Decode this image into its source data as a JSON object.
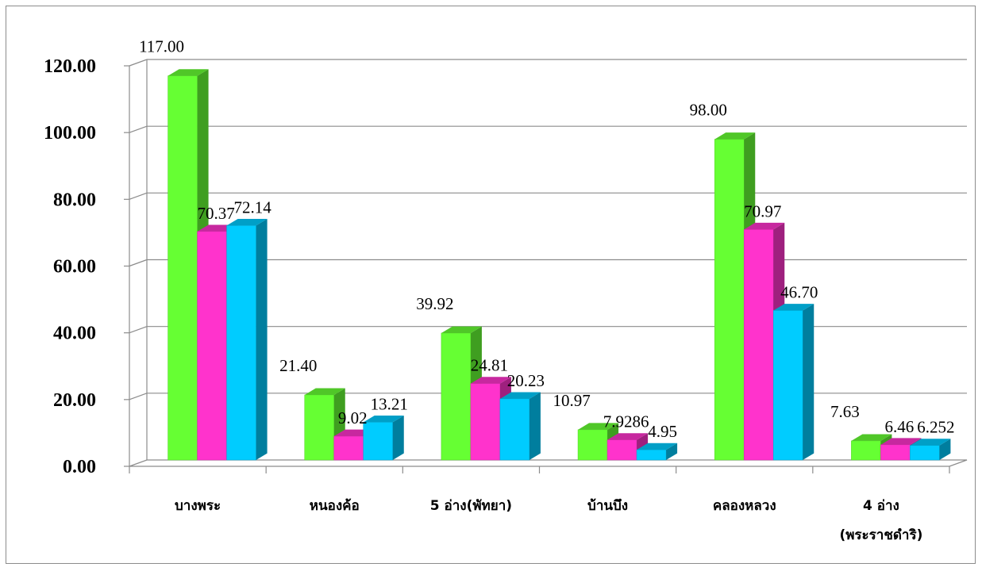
{
  "chart_data": {
    "type": "bar",
    "title": "",
    "xlabel": "",
    "ylabel": "",
    "ylim": [
      0,
      120
    ],
    "grid": true,
    "legend": "none",
    "yticks": [
      "0.00",
      "20.00",
      "40.00",
      "60.00",
      "80.00",
      "100.00",
      "120.00"
    ],
    "categories": [
      [
        "บางพระ"
      ],
      [
        "หนองค้อ"
      ],
      [
        "5 อ่าง(พัทยา)"
      ],
      [
        "บ้านบึง"
      ],
      [
        "คลองหลวง"
      ],
      [
        "4 อ่าง",
        "(พระราชดำริ)"
      ]
    ],
    "series": [
      {
        "color": "#66ff33",
        "values": [
          117.0,
          21.4,
          39.92,
          10.97,
          98.0,
          7.63
        ],
        "labels": [
          "117.00",
          "21.40",
          "39.92",
          "10.97",
          "98.00",
          "7.63"
        ]
      },
      {
        "color": "#ff33cc",
        "values": [
          70.37,
          9.02,
          24.81,
          7.9286,
          70.97,
          6.46
        ],
        "labels": [
          "70.37",
          "9.02",
          "24.81",
          "7.9286",
          "70.97",
          "6.46"
        ]
      },
      {
        "color": "#00ccff",
        "values": [
          72.14,
          13.21,
          20.23,
          4.95,
          46.7,
          6.252
        ],
        "labels": [
          "72.14",
          "13.21",
          "20.23",
          "4.95",
          "46.70",
          "6.252"
        ]
      }
    ]
  }
}
